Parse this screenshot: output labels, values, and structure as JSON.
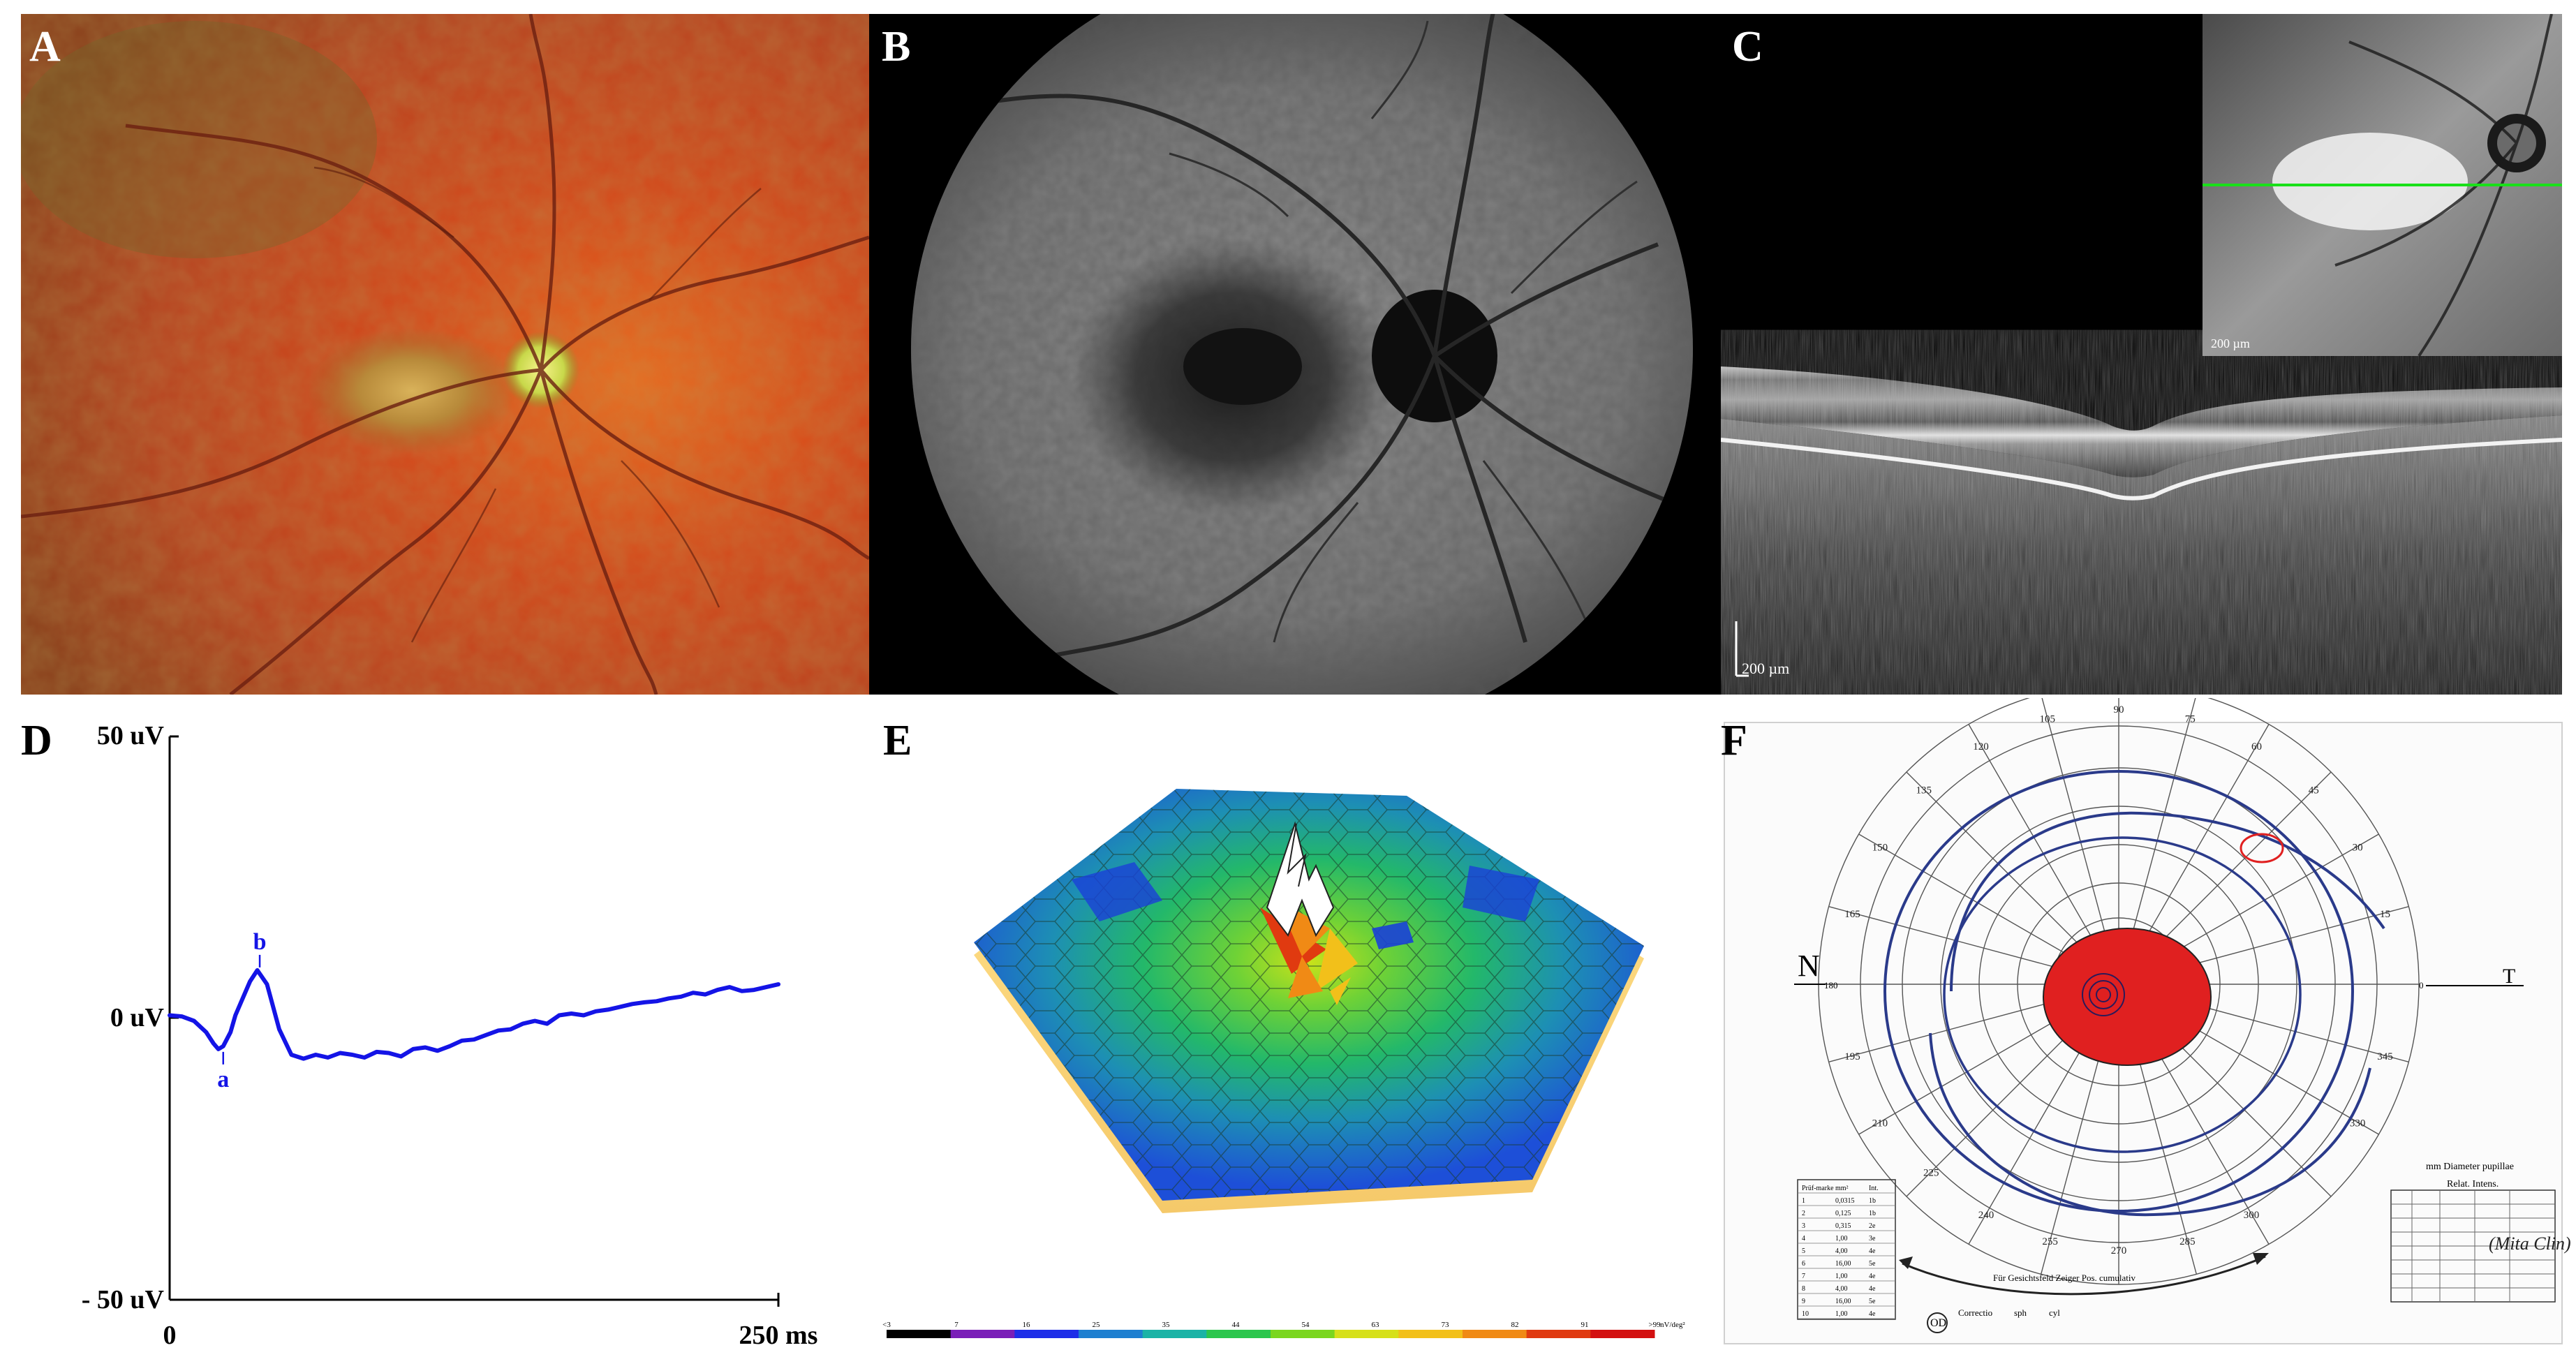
{
  "panels": {
    "a": {
      "label": "A"
    },
    "b": {
      "label": "B"
    },
    "c": {
      "label": "C",
      "scale_bar": "200 µm",
      "inset_scale": "200 µm"
    },
    "d": {
      "label": "D"
    },
    "e": {
      "label": "E"
    },
    "f": {
      "label": "F"
    }
  },
  "erg": {
    "y_top_label": "50 uV",
    "y_zero_label": "0 uV",
    "y_bottom_label": "- 50 uV",
    "x_start_label": "0",
    "x_end_label": "250 ms",
    "a_wave_label": "a",
    "b_wave_label": "b",
    "trace_color": "#1414e6"
  },
  "chart_data": {
    "type": "line",
    "title": "",
    "xlabel": "",
    "ylabel": "",
    "xlim": [
      0,
      250
    ],
    "ylim": [
      -50,
      50
    ],
    "x_ticks": [
      "0",
      "250 ms"
    ],
    "y_ticks": [
      "50 uV",
      "0 uV",
      "- 50 uV"
    ],
    "series": [
      {
        "x": [
          0,
          5,
          10,
          15,
          18,
          20,
          22,
          25,
          27,
          30,
          33,
          36,
          40,
          45,
          50,
          55,
          60,
          65,
          70,
          75,
          80,
          85,
          90,
          95,
          100,
          105,
          110,
          115,
          120,
          125,
          130,
          135,
          140,
          145,
          150,
          155,
          160,
          165,
          170,
          175,
          180,
          185,
          190,
          195,
          200,
          205,
          210,
          215,
          220,
          225,
          230,
          235,
          240,
          245,
          250
        ],
        "y": [
          0.5,
          0.3,
          -0.5,
          -2.5,
          -4.5,
          -5.5,
          -5.0,
          -2.5,
          0.5,
          3.5,
          6.5,
          8.5,
          6.0,
          -2.0,
          -6.5,
          -7.2,
          -6.5,
          -7.0,
          -6.2,
          -6.5,
          -7.0,
          -6.0,
          -6.2,
          -6.8,
          -5.5,
          -5.2,
          -5.8,
          -5.0,
          -4.0,
          -3.8,
          -3.0,
          -2.2,
          -2.0,
          -1.0,
          -0.5,
          -1.0,
          0.5,
          0.8,
          0.5,
          1.2,
          1.5,
          2.0,
          2.5,
          2.8,
          3.0,
          3.5,
          3.8,
          4.5,
          4.2,
          5.0,
          5.5,
          4.8,
          5.0,
          5.5,
          6.0
        ]
      }
    ],
    "annotations": [
      {
        "text": "a",
        "x": 22,
        "y": -5.5
      },
      {
        "text": "b",
        "x": 37,
        "y": 8.5
      }
    ]
  },
  "mferg": {
    "colorbar_ticks": [
      "<3",
      "7",
      "16",
      "25",
      "35",
      "44",
      "54",
      "63",
      "73",
      "82",
      "91",
      ">99"
    ],
    "colorbar_unit": "nV/deg²",
    "colorbar_colors": [
      "#000000",
      "#7a1fb8",
      "#1e2ee8",
      "#1e7fd0",
      "#1bb3a6",
      "#2cc64d",
      "#7bd61f",
      "#d6e01a",
      "#f2c01a",
      "#f08a15",
      "#e03a10",
      "#d31010"
    ]
  },
  "perimetry": {
    "angle_labels": [
      "120",
      "105",
      "90",
      "75",
      "60",
      "135",
      "45",
      "150",
      "30",
      "165",
      "15",
      "195",
      "345",
      "210",
      "330",
      "225",
      "240",
      "255",
      "270",
      "285",
      "300"
    ],
    "nasal_label": "N",
    "temporal_label": "T",
    "row_180": "180",
    "row_0": "0",
    "isopter_color": "#2a3a8a",
    "scotoma_color": "#e02020",
    "pupil_label": "mm    Diameter pupillae",
    "left_table_header": [
      "Prüf-marke",
      "mm²",
      "Int."
    ],
    "left_table_rows": [
      [
        "1",
        "0,0315",
        "1b"
      ],
      [
        "2",
        "0,125",
        "1b"
      ],
      [
        "3",
        "0,315",
        "2e"
      ],
      [
        "4",
        "1,00",
        "3e"
      ],
      [
        "5",
        "4,00",
        "4e"
      ],
      [
        "6",
        "16,00",
        "5e"
      ],
      [
        "7",
        "1,00",
        "4e"
      ],
      [
        "8",
        "4,00",
        "4e"
      ],
      [
        "9",
        "16,00",
        "5e"
      ],
      [
        "10",
        "1,00",
        "4e"
      ]
    ],
    "right_table_title": "Relat. Intens.",
    "handwriting": "(Mita Clin)",
    "arrow_left_text": "Für Gesichtsfeld Zeiger Pos. cumulativ",
    "arrow_right_text": "Für Gesichtsfeld Zeiger Pos. cumulativ",
    "od_label": "OD",
    "correction_label": "Correctio",
    "bottom_labels": [
      "sph",
      "cyl"
    ]
  }
}
